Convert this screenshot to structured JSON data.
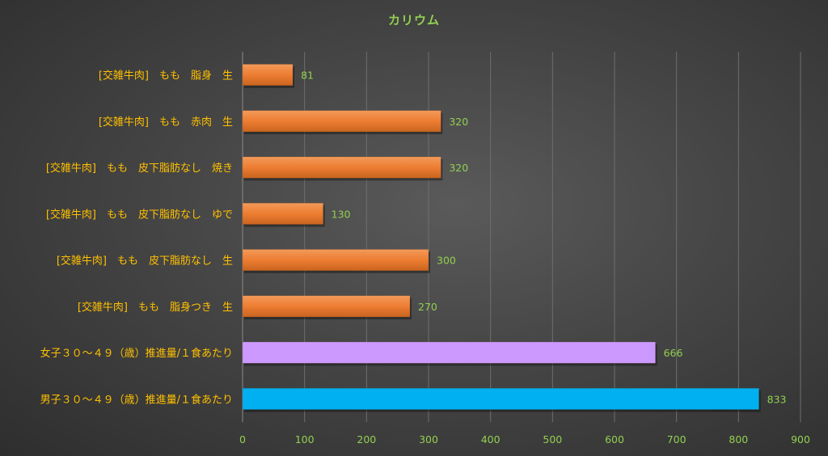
{
  "chart_data": {
    "type": "bar",
    "orientation": "horizontal",
    "title": "カリウム",
    "categories": [
      "[交雑牛肉]　もも　脂身　生",
      "[交雑牛肉]　もも　赤肉　生",
      "[交雑牛肉]　もも　皮下脂肪なし　焼き",
      "[交雑牛肉]　もも　皮下脂肪なし　ゆで",
      "[交雑牛肉]　もも　皮下脂肪なし　生",
      "[交雑牛肉]　もも　脂身つき　生",
      "女子３０～４９（歳）推進量/１食あたり",
      "男子３０～４９（歳）推進量/１食あたり"
    ],
    "values": [
      81,
      320,
      320,
      130,
      300,
      270,
      666,
      833
    ],
    "bar_colors": [
      "#ed7d31",
      "#ed7d31",
      "#ed7d31",
      "#ed7d31",
      "#ed7d31",
      "#ed7d31",
      "#cc99ff",
      "#00b0f0"
    ],
    "xlim": [
      0,
      900
    ],
    "xticks": [
      0,
      100,
      200,
      300,
      400,
      500,
      600,
      700,
      800,
      900
    ],
    "grid": true,
    "legend": "none",
    "colors": {
      "title": "#92d050",
      "category_labels": "#ffc000",
      "tick_labels": "#92d050",
      "data_labels": "#92d050",
      "gridlines": "#6e6e6e"
    }
  }
}
